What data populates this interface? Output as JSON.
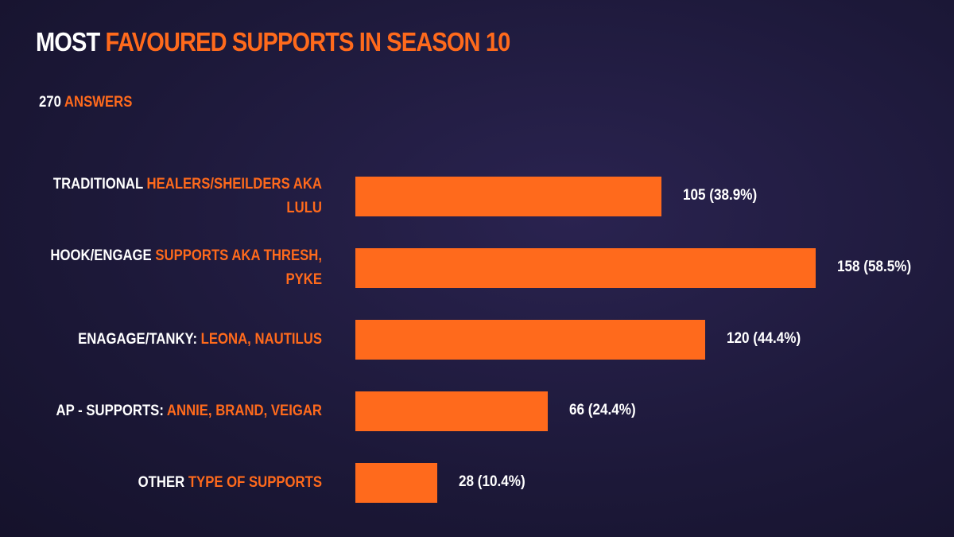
{
  "chart_data": {
    "type": "bar",
    "orientation": "horizontal",
    "title": [
      "MOST",
      "FAVOURED SUPPORTS IN SEASON 10"
    ],
    "subtitle": [
      "270",
      "ANSWERS"
    ],
    "categories": [
      [
        "TRADITIONAL",
        "HEALERS/SHEILDERS AKA LULU"
      ],
      [
        "HOOK/ENGAGE",
        "SUPPORTS AKA THRESH, PYKE"
      ],
      [
        "ENAGAGE/TANKY:",
        "LEONA, NAUTILUS"
      ],
      [
        "AP - SUPPORTS:",
        "ANNIE, BRAND, VEIGAR"
      ],
      [
        "OTHER",
        "TYPE OF SUPPORTS"
      ]
    ],
    "values": [
      105,
      158,
      120,
      66,
      28
    ],
    "value_labels": [
      "105 (38.9%)",
      "158 (58.5%)",
      "120 (44.4%)",
      "66 (24.4%)",
      "28 (10.4%)"
    ],
    "color": "#ff6a1c"
  }
}
